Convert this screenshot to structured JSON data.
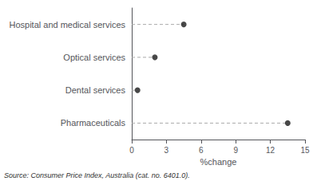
{
  "chart_data": {
    "type": "dot",
    "orientation": "horizontal",
    "categories": [
      "Hospital and medical services",
      "Optical services",
      "Dental services",
      "Pharmaceuticals"
    ],
    "values": [
      4.5,
      2.0,
      0.5,
      13.5
    ],
    "xlabel": "%change",
    "xlim": [
      0,
      15
    ],
    "xticks": [
      0,
      3,
      6,
      9,
      12,
      15
    ],
    "color": "#1a1a1a",
    "line_style": "dashed",
    "grid": false,
    "annotations": [
      "Source: Consumer Price Index, Australia (cat. no. 6401.0)."
    ]
  }
}
